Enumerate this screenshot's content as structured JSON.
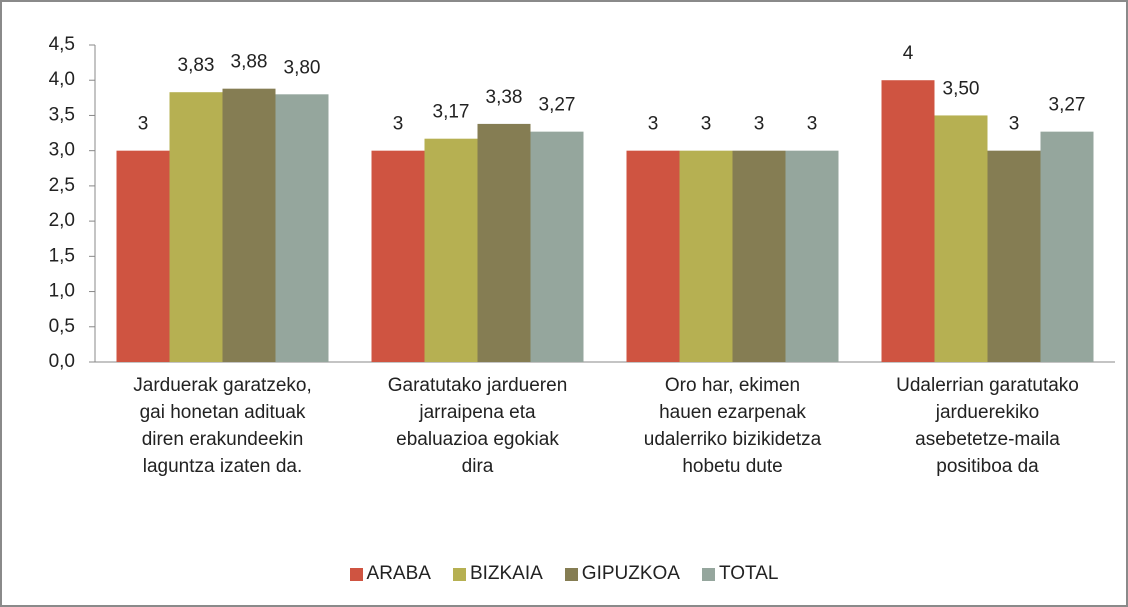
{
  "chart_data": {
    "type": "bar",
    "categories": [
      "Jarduerak garatzeko, gai honetan adituak diren erakundeekin laguntza izaten da.",
      "Garatutako jardueren jarraipena eta ebaluazioa egokiak dira",
      "Oro har, ekimen hauen ezarpenak udalerriko bizikidetza hobetu dute",
      "Udalerrian garatutako jarduerekiko asebetetze-maila positiboa da"
    ],
    "series": [
      {
        "name": "ARABA",
        "color": "#cf5441",
        "values": [
          3,
          3,
          3,
          4
        ],
        "value_labels": [
          "3",
          "3",
          "3",
          "4"
        ]
      },
      {
        "name": "BIZKAIA",
        "color": "#b6b052",
        "values": [
          3.83,
          3.17,
          3,
          3.5
        ],
        "value_labels": [
          "3,83",
          "3,17",
          "3",
          "3,50"
        ]
      },
      {
        "name": "GIPUZKOA",
        "color": "#857d53",
        "values": [
          3.88,
          3.38,
          3,
          3
        ],
        "value_labels": [
          "3,88",
          "3,38",
          "3",
          "3"
        ]
      },
      {
        "name": "TOTAL",
        "color": "#95a69d",
        "values": [
          3.8,
          3.27,
          3,
          3.27
        ],
        "value_labels": [
          "3,80",
          "3,27",
          "3",
          "3,27"
        ]
      }
    ],
    "ylim": [
      0,
      4.5
    ],
    "yticks": [
      {
        "value": 0,
        "label": "0,0"
      },
      {
        "value": 0.5,
        "label": "0,5"
      },
      {
        "value": 1,
        "label": "1,0"
      },
      {
        "value": 1.5,
        "label": "1,5"
      },
      {
        "value": 2,
        "label": "2,0"
      },
      {
        "value": 2.5,
        "label": "2,5"
      },
      {
        "value": 3,
        "label": "3,0"
      },
      {
        "value": 3.5,
        "label": "3,5"
      },
      {
        "value": 4,
        "label": "4,0"
      },
      {
        "value": 4.5,
        "label": "4,5"
      }
    ],
    "legend": "bottom"
  }
}
